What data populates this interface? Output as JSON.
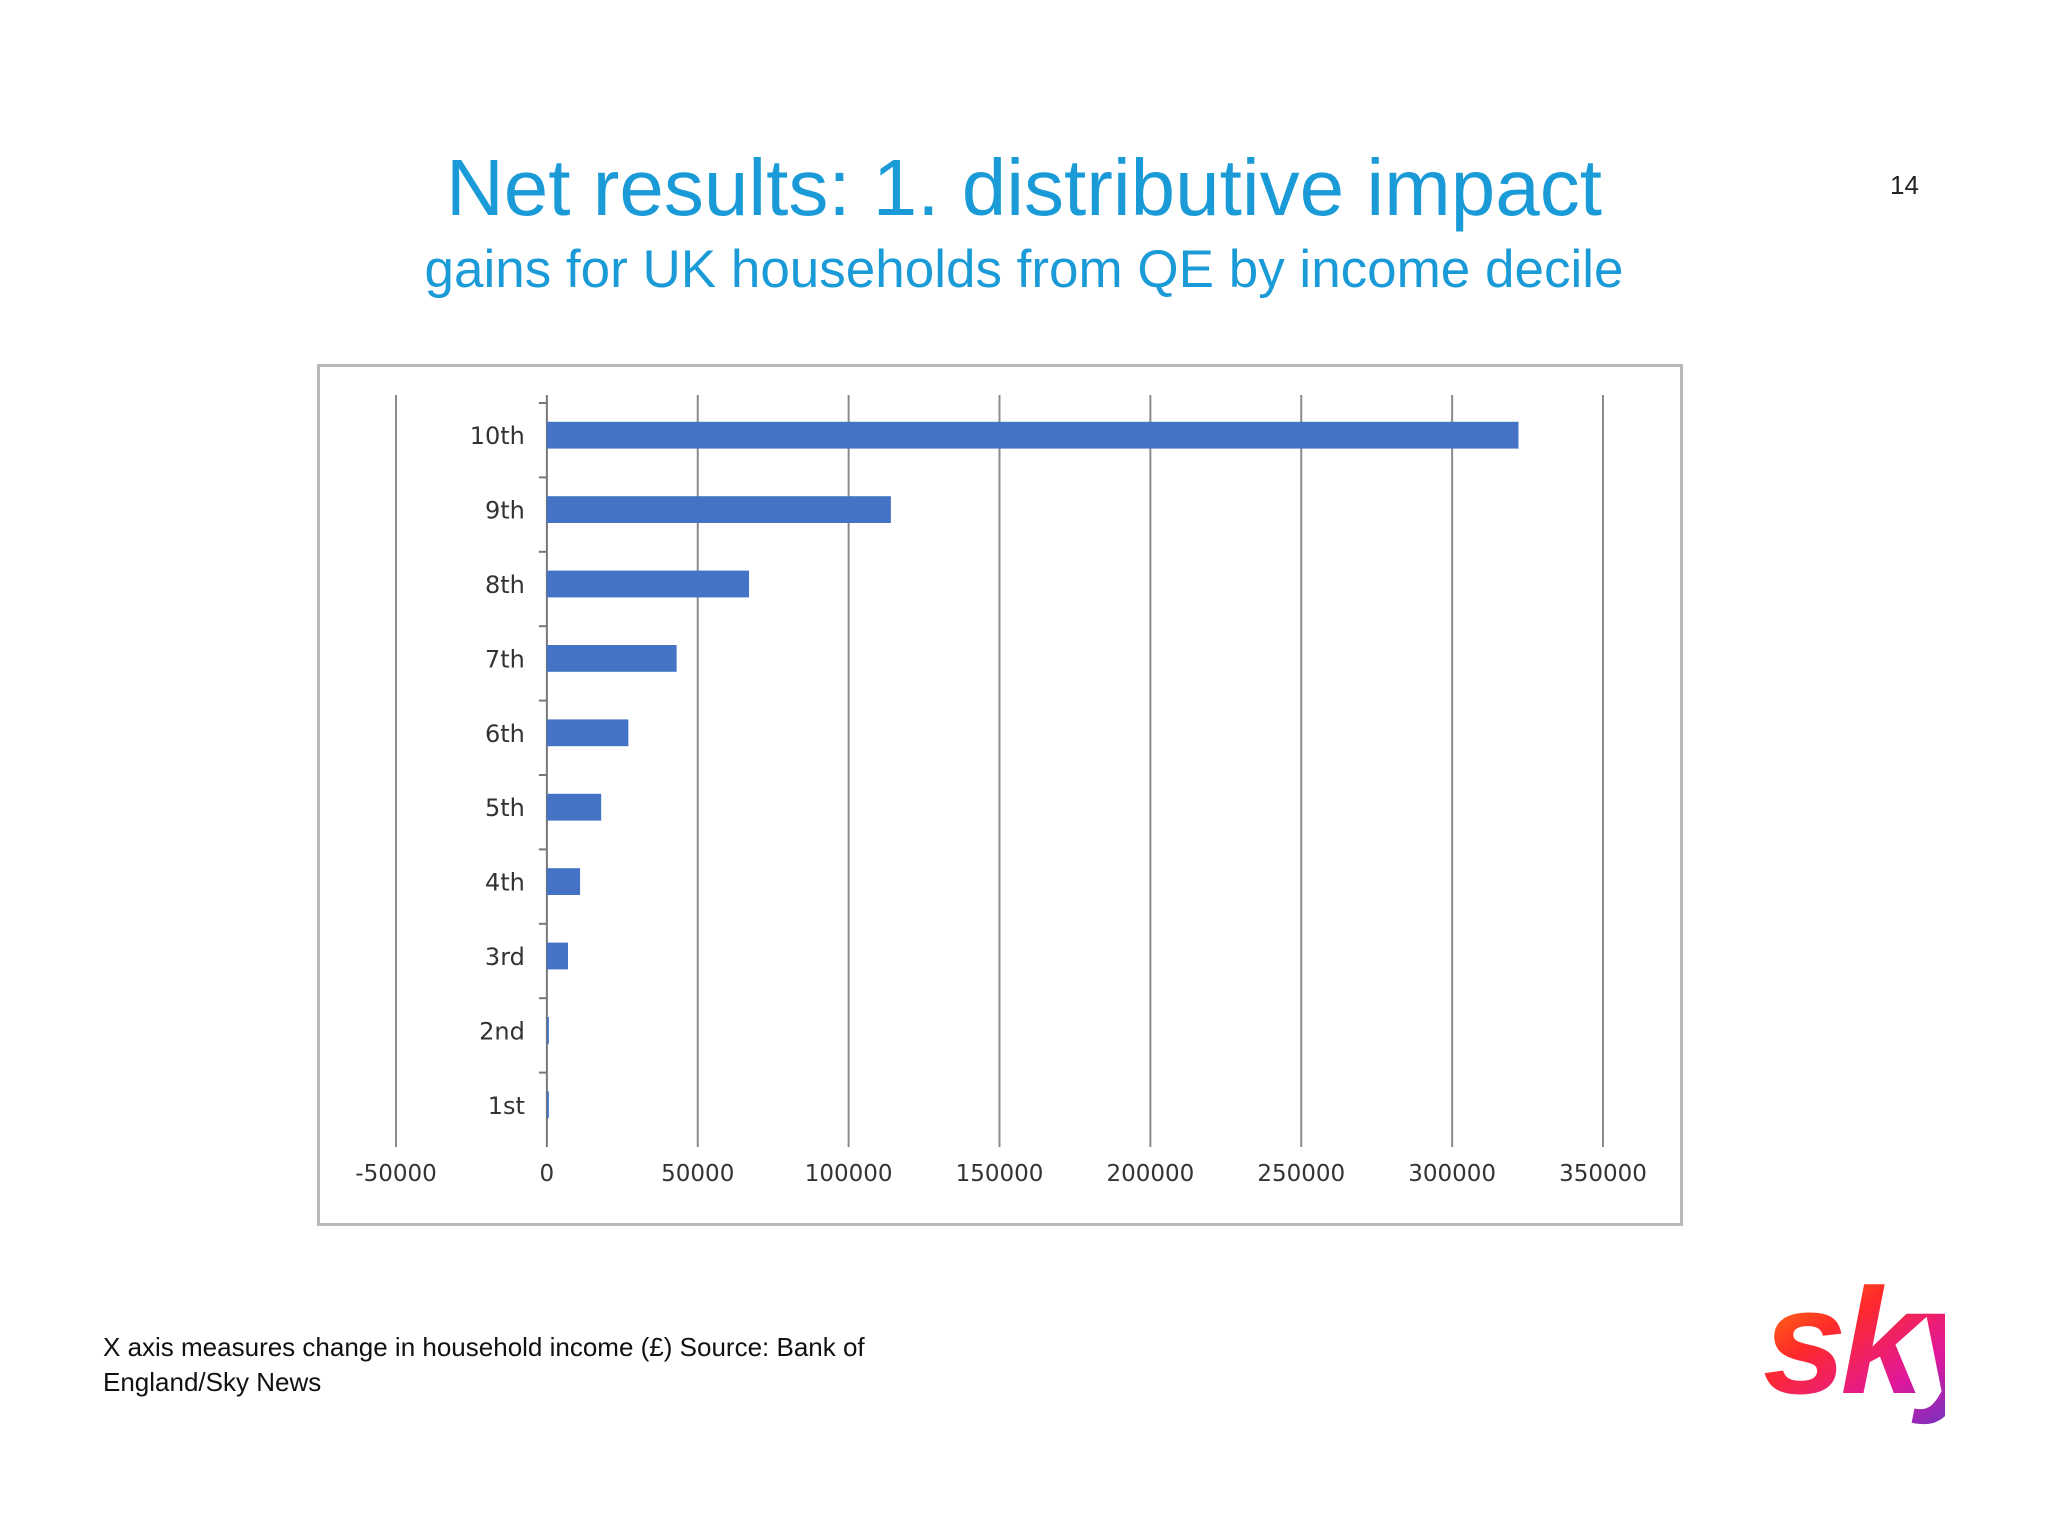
{
  "slide": {
    "title": "Net results: 1. distributive impact",
    "subtitle": "gains for UK households from QE by income decile",
    "page_number": "14",
    "footnote": "X axis measures change in household income (£) Source: Bank of England/Sky News",
    "logo_text": "sky"
  },
  "colors": {
    "title": "#1a9bd7",
    "bar": "#4472c4",
    "grid": "#8c8c8c"
  },
  "chart_data": {
    "type": "bar",
    "orientation": "horizontal",
    "title": "",
    "xlabel": "",
    "ylabel": "",
    "categories": [
      "10th",
      "9th",
      "8th",
      "7th",
      "6th",
      "5th",
      "4th",
      "3rd",
      "2nd",
      "1st"
    ],
    "values": [
      322000,
      114000,
      67000,
      43000,
      27000,
      18000,
      11000,
      7000,
      500,
      300
    ],
    "xlim": [
      -50000,
      350000
    ],
    "xticks": [
      "-50000",
      "0",
      "50000",
      "100000",
      "150000",
      "200000",
      "250000",
      "300000",
      "350000"
    ],
    "grid": "vertical",
    "legend": "none"
  }
}
